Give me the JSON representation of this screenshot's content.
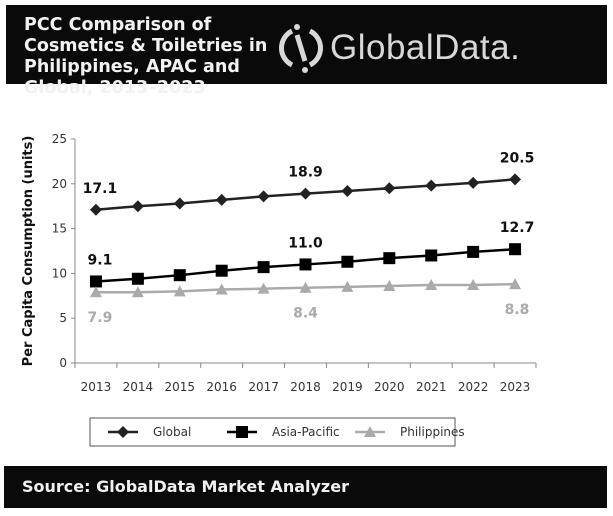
{
  "header": {
    "title": "PCC Comparison of Cosmetics & Toiletries in Philippines, APAC and Global, 2013–2023",
    "logo_text": "GlobalData."
  },
  "footer": {
    "source": "Source: GlobalData Market Analyzer"
  },
  "chart_data": {
    "type": "line",
    "title": "PCC Comparison of Cosmetics & Toiletries in Philippines, APAC and Global, 2013–2023",
    "xlabel": "",
    "ylabel": "Per Capita Consumption (units)",
    "ylim": [
      0,
      25
    ],
    "yticks": [
      0,
      5,
      10,
      15,
      20,
      25
    ],
    "grid": false,
    "legend": "bottom",
    "categories": [
      "2013",
      "2014",
      "2015",
      "2016",
      "2017",
      "2018",
      "2019",
      "2020",
      "2021",
      "2022",
      "2023"
    ],
    "series": [
      {
        "name": "Global",
        "marker": "diamond",
        "color": "#222222",
        "values": [
          17.1,
          17.5,
          17.8,
          18.2,
          18.6,
          18.9,
          19.2,
          19.5,
          19.8,
          20.1,
          20.5
        ],
        "labels": {
          "0": "17.1",
          "5": "18.9",
          "10": "20.5"
        }
      },
      {
        "name": "Asia-Pacific",
        "marker": "square",
        "color": "#000000",
        "values": [
          9.1,
          9.4,
          9.8,
          10.3,
          10.7,
          11.0,
          11.3,
          11.7,
          12.0,
          12.4,
          12.7
        ],
        "labels": {
          "0": "9.1",
          "5": "11.0",
          "10": "12.7"
        }
      },
      {
        "name": "Philippines",
        "marker": "triangle",
        "color": "#aaaaaa",
        "values": [
          7.9,
          7.9,
          8.0,
          8.2,
          8.3,
          8.4,
          8.5,
          8.6,
          8.7,
          8.7,
          8.8
        ],
        "labels": {
          "0": "7.9",
          "5": "8.4",
          "10": "8.8"
        }
      }
    ]
  }
}
